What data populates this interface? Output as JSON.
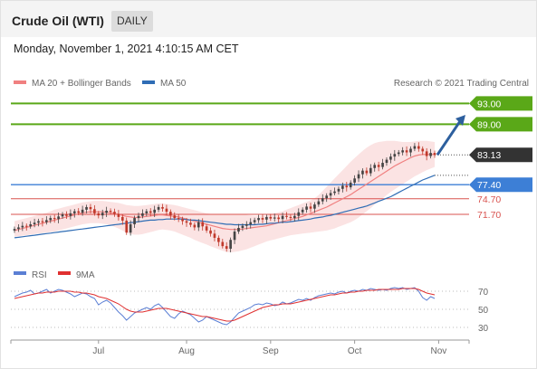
{
  "header": {
    "instrument": "Crude Oil (WTI)",
    "period": "DAILY"
  },
  "timestamp": "Monday, November 1, 2021 4:10:15 AM CET",
  "legend": {
    "bollinger": "MA 20 + Bollinger Bands",
    "ma50": "MA 50",
    "rsi": "RSI",
    "rsi_ma": "9MA",
    "credit": "Research © 2021 Trading Central"
  },
  "colors": {
    "up": "#444444",
    "down": "#c0392b",
    "ma20": "#f08080",
    "band_fill": "#fbe3e3",
    "ma50": "#2f6db5",
    "resistance": "#5aa818",
    "support_blue": "#3d7fd6",
    "support_red": "#d9534f",
    "last_price": "#333333",
    "arrow": "#2d5f9e",
    "rsi": "#5b7fd4",
    "rsi_ma": "#e03030"
  },
  "chart_data": [
    {
      "type": "candlestick",
      "title": "Crude Oil (WTI)",
      "ylim": [
        62.5,
        95.5
      ],
      "x_ticks": [
        "Jul",
        "Aug",
        "Sep",
        "Oct",
        "Nov"
      ],
      "x_tick_index": [
        21,
        43,
        64,
        85,
        106
      ],
      "levels": [
        {
          "value": 93.0,
          "label": "93.00",
          "kind": "resistance"
        },
        {
          "value": 89.0,
          "label": "89.00",
          "kind": "resistance"
        },
        {
          "value": 83.13,
          "label": "83.13",
          "kind": "last"
        },
        {
          "value": 77.4,
          "label": "77.40",
          "kind": "pivot"
        },
        {
          "value": 74.7,
          "label": "74.70",
          "kind": "support"
        },
        {
          "value": 71.7,
          "label": "71.70",
          "kind": "support"
        }
      ],
      "arrow": {
        "from": 83.13,
        "to": 90.8
      },
      "close": [
        68.9,
        69.2,
        69.5,
        69.4,
        69.8,
        70.1,
        70.4,
        70.2,
        70.6,
        71.0,
        70.8,
        71.3,
        71.7,
        71.4,
        71.9,
        72.3,
        72.0,
        72.6,
        73.1,
        72.7,
        71.9,
        71.5,
        72.0,
        72.4,
        72.2,
        71.8,
        71.2,
        70.5,
        68.2,
        69.8,
        71.0,
        71.4,
        71.9,
        72.3,
        72.0,
        72.6,
        73.1,
        72.8,
        72.2,
        71.5,
        71.0,
        70.8,
        70.4,
        70.1,
        69.7,
        69.2,
        70.2,
        69.4,
        68.6,
        68.0,
        67.2,
        66.4,
        65.6,
        65.1,
        66.8,
        68.4,
        69.1,
        69.5,
        69.8,
        70.2,
        70.6,
        71.0,
        70.7,
        71.2,
        70.9,
        71.1,
        70.8,
        71.4,
        71.2,
        71.0,
        71.4,
        72.1,
        72.6,
        73.2,
        72.8,
        73.6,
        74.2,
        74.8,
        75.3,
        75.8,
        76.1,
        76.6,
        77.2,
        76.9,
        77.8,
        78.6,
        79.4,
        80.1,
        79.6,
        80.6,
        81.2,
        80.8,
        81.6,
        82.2,
        82.8,
        83.3,
        83.6,
        84.0,
        83.6,
        84.3,
        84.8,
        84.3,
        83.8,
        82.9,
        83.5,
        83.13
      ],
      "ma20": [
        68.6,
        68.8,
        69.0,
        69.2,
        69.4,
        69.6,
        69.8,
        70.0,
        70.2,
        70.4,
        70.6,
        70.8,
        71.0,
        71.2,
        71.4,
        71.6,
        71.8,
        72.0,
        72.1,
        72.2,
        72.2,
        72.2,
        72.2,
        72.1,
        72.0,
        71.9,
        71.7,
        71.5,
        71.3,
        71.2,
        71.1,
        71.1,
        71.2,
        71.3,
        71.4,
        71.5,
        71.6,
        71.6,
        71.5,
        71.4,
        71.3,
        71.2,
        71.0,
        70.8,
        70.6,
        70.4,
        70.2,
        70.0,
        69.8,
        69.6,
        69.4,
        69.2,
        69.0,
        68.9,
        68.8,
        68.8,
        68.8,
        68.9,
        69.0,
        69.1,
        69.2,
        69.3,
        69.4,
        69.5,
        69.7,
        69.9,
        70.1,
        70.3,
        70.5,
        70.7,
        70.9,
        71.1,
        71.3,
        71.6,
        71.9,
        72.2,
        72.5,
        72.8,
        73.1,
        73.5,
        73.9,
        74.3,
        74.7,
        75.1,
        75.5,
        76.0,
        76.5,
        77.0,
        77.5,
        78.0,
        78.5,
        79.0,
        79.5,
        80.0,
        80.5,
        81.0,
        81.4,
        81.8,
        82.2,
        82.6,
        82.9,
        83.1,
        83.2,
        83.2,
        83.2,
        83.2
      ],
      "bb_upper": [
        70.4,
        70.6,
        70.8,
        71.0,
        71.2,
        71.4,
        71.6,
        71.8,
        72.0,
        72.3,
        72.6,
        72.8,
        73.0,
        73.2,
        73.4,
        73.6,
        73.8,
        74.0,
        74.1,
        74.2,
        74.3,
        74.3,
        74.3,
        74.2,
        74.1,
        74.0,
        73.9,
        73.7,
        73.5,
        73.4,
        73.3,
        73.3,
        73.4,
        73.5,
        73.6,
        73.7,
        73.8,
        73.8,
        73.7,
        73.6,
        73.5,
        73.3,
        73.1,
        72.9,
        72.7,
        72.5,
        72.3,
        72.1,
        71.9,
        71.8,
        71.7,
        71.7,
        71.7,
        71.7,
        71.7,
        71.7,
        71.7,
        71.7,
        71.6,
        71.5,
        71.4,
        71.4,
        71.4,
        71.5,
        71.7,
        71.9,
        72.1,
        72.3,
        72.6,
        72.9,
        73.2,
        73.5,
        73.8,
        74.1,
        74.4,
        74.8,
        75.4,
        76.2,
        77.0,
        77.8,
        78.6,
        79.4,
        80.2,
        81.0,
        81.8,
        82.5,
        83.2,
        83.9,
        84.5,
        85.0,
        85.4,
        85.6,
        85.7,
        85.8,
        85.8,
        85.8,
        85.7,
        85.6,
        85.6,
        85.6,
        85.7,
        85.8,
        85.8,
        85.8,
        85.7,
        85.6
      ],
      "bb_lower": [
        67.4,
        67.5,
        67.6,
        67.7,
        67.8,
        67.9,
        68.0,
        68.1,
        68.2,
        68.3,
        68.4,
        68.6,
        68.8,
        69.0,
        69.2,
        69.4,
        69.6,
        69.8,
        69.9,
        70.0,
        70.0,
        70.0,
        69.9,
        69.8,
        69.6,
        69.3,
        69.0,
        68.6,
        68.2,
        67.9,
        67.8,
        67.8,
        67.9,
        68.1,
        68.3,
        68.5,
        68.7,
        68.8,
        68.7,
        68.6,
        68.4,
        68.1,
        67.8,
        67.5,
        67.2,
        66.8,
        66.5,
        66.2,
        65.9,
        65.6,
        65.3,
        65.0,
        64.7,
        64.5,
        64.4,
        64.5,
        64.6,
        64.8,
        65.0,
        65.3,
        65.6,
        65.9,
        66.2,
        66.5,
        66.7,
        66.9,
        67.1,
        67.3,
        67.5,
        67.7,
        67.8,
        67.9,
        68.0,
        68.1,
        68.2,
        68.3,
        68.4,
        68.5,
        68.6,
        68.8,
        69.0,
        69.3,
        69.6,
        69.9,
        70.2,
        70.6,
        71.1,
        71.7,
        72.3,
        72.9,
        73.6,
        74.2,
        74.8,
        75.4,
        76.0,
        76.5,
        77.0,
        77.5,
        78.0,
        78.5,
        79.0,
        79.4,
        79.8,
        80.2,
        80.5,
        80.8
      ],
      "ma50": [
        67.2,
        67.3,
        67.4,
        67.5,
        67.6,
        67.7,
        67.8,
        67.9,
        68.0,
        68.1,
        68.2,
        68.3,
        68.4,
        68.5,
        68.6,
        68.7,
        68.8,
        68.9,
        69.0,
        69.1,
        69.2,
        69.3,
        69.4,
        69.5,
        69.6,
        69.7,
        69.8,
        69.9,
        70.0,
        70.1,
        70.2,
        70.3,
        70.4,
        70.5,
        70.6,
        70.6,
        70.7,
        70.7,
        70.8,
        70.8,
        70.8,
        70.8,
        70.8,
        70.7,
        70.6,
        70.6,
        70.5,
        70.4,
        70.3,
        70.2,
        70.1,
        70.0,
        69.9,
        69.8,
        69.8,
        69.7,
        69.7,
        69.7,
        69.7,
        69.7,
        69.7,
        69.8,
        69.8,
        69.9,
        70.0,
        70.0,
        70.1,
        70.2,
        70.2,
        70.3,
        70.4,
        70.5,
        70.6,
        70.7,
        70.8,
        71.0,
        71.1,
        71.2,
        71.4,
        71.5,
        71.7,
        71.9,
        72.1,
        72.3,
        72.5,
        72.7,
        72.9,
        73.1,
        73.3,
        73.6,
        73.9,
        74.2,
        74.5,
        74.8,
        75.1,
        75.5,
        75.9,
        76.3,
        76.7,
        77.1,
        77.5,
        77.9,
        78.3,
        78.6,
        78.9,
        79.2
      ]
    },
    {
      "type": "line",
      "title": "RSI",
      "ylim": [
        20,
        80
      ],
      "y_ticks": [
        70,
        50,
        30
      ],
      "series": [
        {
          "name": "RSI",
          "values": [
            64,
            66,
            68,
            69,
            71,
            67,
            68,
            70,
            72,
            68,
            70,
            72,
            71,
            69,
            67,
            64,
            66,
            68,
            67,
            64,
            62,
            55,
            58,
            60,
            57,
            52,
            47,
            43,
            38,
            42,
            46,
            48,
            50,
            52,
            50,
            54,
            56,
            52,
            47,
            42,
            40,
            45,
            48,
            46,
            44,
            40,
            36,
            38,
            42,
            40,
            38,
            36,
            34,
            33,
            36,
            41,
            46,
            48,
            50,
            52,
            55,
            56,
            55,
            57,
            56,
            54,
            55,
            58,
            56,
            57,
            59,
            61,
            60,
            62,
            60,
            63,
            65,
            66,
            67,
            68,
            67,
            69,
            70,
            68,
            70,
            71,
            70,
            72,
            71,
            73,
            72,
            71,
            72,
            71,
            73,
            74,
            73,
            74,
            72,
            73,
            74,
            70,
            63,
            60,
            64,
            62
          ]
        },
        {
          "name": "9MA",
          "values": [
            62,
            63,
            64,
            65,
            66,
            67,
            68,
            68,
            69,
            69,
            69,
            70,
            70,
            70,
            70,
            69,
            69,
            68,
            68,
            67,
            66,
            64,
            63,
            62,
            60,
            58,
            56,
            53,
            50,
            48,
            47,
            47,
            47,
            48,
            49,
            50,
            51,
            51,
            51,
            50,
            49,
            48,
            47,
            46,
            45,
            44,
            43,
            42,
            42,
            41,
            40,
            39,
            38,
            37,
            37,
            38,
            40,
            42,
            44,
            46,
            48,
            50,
            52,
            53,
            54,
            55,
            55,
            56,
            56,
            56,
            57,
            58,
            59,
            60,
            61,
            62,
            63,
            64,
            65,
            66,
            66,
            67,
            68,
            68,
            69,
            69,
            70,
            70,
            71,
            71,
            71,
            72,
            72,
            72,
            72,
            72,
            72,
            73,
            73,
            73,
            73,
            72,
            70,
            68,
            67,
            66
          ]
        }
      ]
    }
  ]
}
